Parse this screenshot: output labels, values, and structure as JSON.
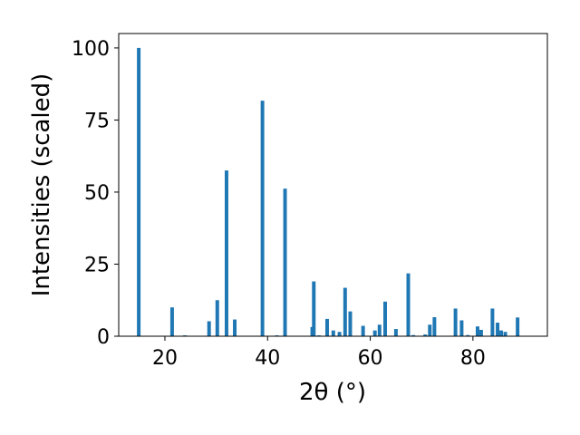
{
  "chart_data": {
    "type": "bar",
    "xlabel": "2θ (°)",
    "ylabel": "Intensities (scaled)",
    "xlim": [
      11,
      94.5
    ],
    "ylim": [
      0,
      105
    ],
    "xticks": [
      20,
      40,
      60,
      80
    ],
    "yticks": [
      0,
      25,
      50,
      75,
      100
    ],
    "bar_color": "#1f77b4",
    "grid": false,
    "bar_width": 0.7,
    "x": [
      14.9,
      21.4,
      23.9,
      28.6,
      30.2,
      32.0,
      33.6,
      39.0,
      41.8,
      43.4,
      48.7,
      49.0,
      50.0,
      51.6,
      52.8,
      54.0,
      55.1,
      56.1,
      58.6,
      60.9,
      61.8,
      62.9,
      65.0,
      67.4,
      68.4,
      70.7,
      71.6,
      72.5,
      76.6,
      77.8,
      79.0,
      80.9,
      81.6,
      83.8,
      84.8,
      85.5,
      86.3,
      88.7
    ],
    "values": [
      100,
      10,
      0.3,
      5.2,
      12.5,
      57.5,
      5.8,
      81.7,
      0.3,
      51.2,
      3.2,
      19.0,
      0.3,
      6.0,
      2.0,
      1.5,
      16.8,
      8.6,
      3.6,
      2.0,
      4.0,
      12.0,
      2.5,
      21.8,
      0.4,
      0.6,
      4.0,
      6.6,
      9.6,
      5.5,
      0.4,
      3.4,
      2.2,
      9.6,
      4.7,
      2.0,
      1.5,
      6.5
    ]
  }
}
